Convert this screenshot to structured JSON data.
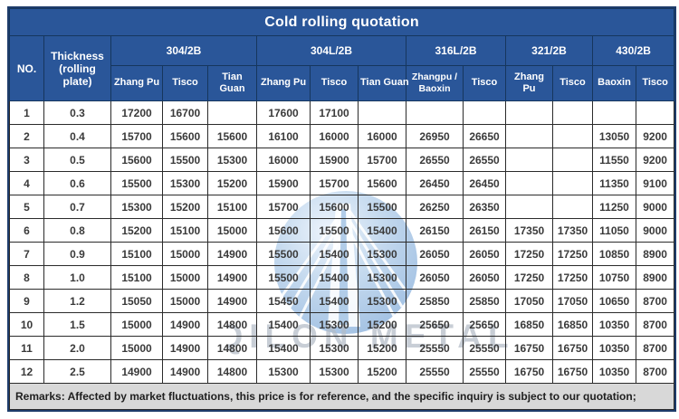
{
  "title": "Cold rolling quotation",
  "header": {
    "no": "NO.",
    "thickness": "Thickness (rolling plate)",
    "groups": [
      {
        "label": "304/2B",
        "subs": [
          "Zhang Pu",
          "Tisco",
          "Tian Guan"
        ]
      },
      {
        "label": "304L/2B",
        "subs": [
          "Zhang Pu",
          "Tisco",
          "Tian Guan"
        ]
      },
      {
        "label": "316L/2B",
        "subs": [
          "Zhangpu / Baoxin",
          "Tisco"
        ]
      },
      {
        "label": "321/2B",
        "subs": [
          "Zhang Pu",
          "Tisco"
        ]
      },
      {
        "label": "430/2B",
        "subs": [
          "Baoxin",
          "Tisco"
        ]
      }
    ]
  },
  "rows": [
    {
      "no": "1",
      "thickness": "0.3",
      "values": [
        "17200",
        "16700",
        "",
        "17600",
        "17100",
        "",
        "",
        "",
        "",
        "",
        "",
        ""
      ]
    },
    {
      "no": "2",
      "thickness": "0.4",
      "values": [
        "15700",
        "15600",
        "15600",
        "16100",
        "16000",
        "16000",
        "26950",
        "26650",
        "",
        "",
        "13050",
        "9200"
      ]
    },
    {
      "no": "3",
      "thickness": "0.5",
      "values": [
        "15600",
        "15500",
        "15300",
        "16000",
        "15900",
        "15700",
        "26550",
        "26550",
        "",
        "",
        "11550",
        "9200"
      ]
    },
    {
      "no": "4",
      "thickness": "0.6",
      "values": [
        "15500",
        "15300",
        "15200",
        "15900",
        "15700",
        "15600",
        "26450",
        "26450",
        "",
        "",
        "11350",
        "9100"
      ]
    },
    {
      "no": "5",
      "thickness": "0.7",
      "values": [
        "15300",
        "15200",
        "15100",
        "15700",
        "15600",
        "15500",
        "26250",
        "26350",
        "",
        "",
        "11250",
        "9000"
      ]
    },
    {
      "no": "6",
      "thickness": "0.8",
      "values": [
        "15200",
        "15100",
        "15000",
        "15600",
        "15500",
        "15400",
        "26150",
        "26150",
        "17350",
        "17350",
        "11050",
        "9000"
      ]
    },
    {
      "no": "7",
      "thickness": "0.9",
      "values": [
        "15100",
        "15000",
        "14900",
        "15500",
        "15400",
        "15300",
        "26050",
        "26050",
        "17250",
        "17250",
        "10850",
        "8900"
      ]
    },
    {
      "no": "8",
      "thickness": "1.0",
      "values": [
        "15100",
        "15000",
        "14900",
        "15500",
        "15400",
        "15300",
        "26050",
        "26050",
        "17250",
        "17250",
        "10750",
        "8900"
      ]
    },
    {
      "no": "9",
      "thickness": "1.2",
      "values": [
        "15050",
        "15000",
        "14900",
        "15450",
        "15400",
        "15300",
        "25850",
        "25850",
        "17050",
        "17050",
        "10650",
        "8700"
      ]
    },
    {
      "no": "10",
      "thickness": "1.5",
      "values": [
        "15000",
        "14900",
        "14800",
        "15400",
        "15300",
        "15200",
        "25650",
        "25650",
        "16850",
        "16850",
        "10350",
        "8700"
      ]
    },
    {
      "no": "11",
      "thickness": "2.0",
      "values": [
        "15000",
        "14900",
        "14800",
        "15400",
        "15300",
        "15200",
        "25550",
        "25550",
        "16750",
        "16750",
        "10350",
        "8700"
      ]
    },
    {
      "no": "12",
      "thickness": "2.5",
      "values": [
        "14900",
        "14900",
        "14800",
        "15300",
        "15300",
        "15200",
        "25550",
        "25550",
        "16750",
        "16750",
        "10350",
        "8700"
      ]
    }
  ],
  "remarks": "Remarks: Affected by market fluctuations, this price is for reference, and the specific inquiry is subject to our quotation;",
  "watermark_text": "QILON METAL",
  "colors": {
    "header_blue": "#2A5699",
    "header_border": "#16365D",
    "frame_border": "#1E3C6B",
    "grid_border": "#2B2B2B",
    "remarks_bg": "#D8D8D8",
    "watermark_blue": "#9FC0E4",
    "watermark_text": "#B3BCC7"
  }
}
